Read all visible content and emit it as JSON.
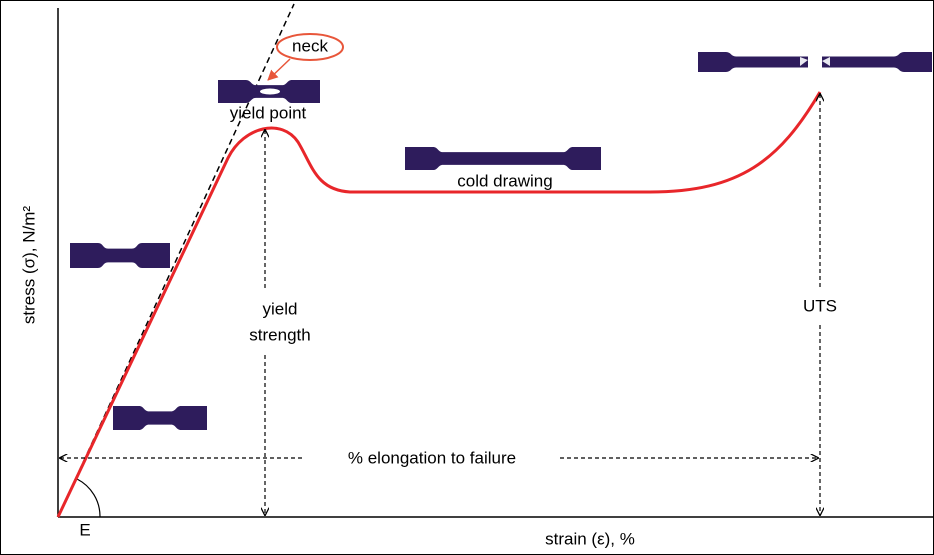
{
  "axes": {
    "y_label": "stress (σ), N/m²",
    "x_label": "strain (ε), %"
  },
  "annotations": {
    "neck": "neck",
    "yield_point": "yield point",
    "cold_drawing": "cold drawing",
    "yield_strength": [
      "yield",
      "strength"
    ],
    "uts": "UTS",
    "elongation": "% elongation to failure",
    "modulus": "E"
  }
}
